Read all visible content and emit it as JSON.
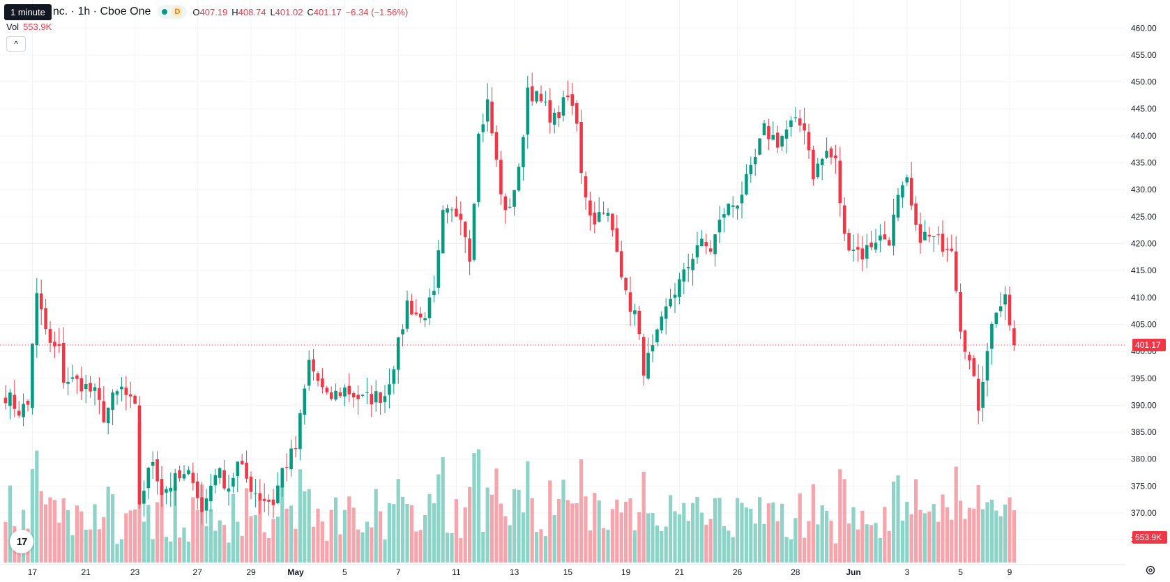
{
  "header": {
    "tooltip": "1 minute",
    "title": "nc. · 1h · Cboe One",
    "interval_badge": "D",
    "ohlc": {
      "o_label": "O",
      "o": "407.19",
      "h_label": "H",
      "h": "408.74",
      "l_label": "L",
      "l": "401.02",
      "c_label": "C",
      "c": "401.17"
    },
    "change": "−6.34 (−1.56%)"
  },
  "volume_legend": {
    "label": "Vol",
    "value": "553.9K"
  },
  "collapse_icon": "^",
  "logo_text": "17",
  "settings_icon": "gear-icon",
  "colors": {
    "up": "#089981",
    "down": "#f23645",
    "vol_up": "#8ed3c7",
    "vol_down": "#f5a5ab",
    "grid": "#f0f3fa",
    "axis_text": "#131722"
  },
  "chart_data": {
    "type": "candlestick",
    "interval": "1h",
    "last_price": 401.17,
    "last_price_label": "401.17",
    "last_volume_label": "553.9K",
    "y_ticks": [
      "460.00",
      "455.00",
      "450.00",
      "445.00",
      "440.00",
      "435.00",
      "430.00",
      "425.00",
      "420.00",
      "415.00",
      "410.00",
      "405.00",
      "400.00",
      "395.00",
      "390.00",
      "385.00",
      "380.00",
      "375.00",
      "370.00",
      "365.00"
    ],
    "ylim": [
      362.5,
      461.2
    ],
    "x_tick_labels": [
      "17",
      "21",
      "23",
      "27",
      "29",
      "May",
      "5",
      "7",
      "11",
      "13",
      "15",
      "19",
      "21",
      "26",
      "28",
      "Jun",
      "3",
      "5",
      "9"
    ],
    "x_tick_bar_index": [
      6,
      18,
      29,
      43,
      55,
      65,
      76,
      88,
      101,
      114,
      126,
      139,
      151,
      164,
      177,
      190,
      202,
      214,
      225
    ],
    "bar_count": 227,
    "waypoints": [
      [
        0,
        392
      ],
      [
        3,
        389
      ],
      [
        5,
        390
      ],
      [
        6,
        402
      ],
      [
        7,
        410
      ],
      [
        10,
        401
      ],
      [
        12,
        400
      ],
      [
        13,
        395
      ],
      [
        17,
        394
      ],
      [
        20,
        392
      ],
      [
        22,
        388
      ],
      [
        24,
        391
      ],
      [
        26,
        393
      ],
      [
        29,
        389
      ],
      [
        30,
        372
      ],
      [
        33,
        380
      ],
      [
        35,
        374
      ],
      [
        38,
        376
      ],
      [
        42,
        377
      ],
      [
        44,
        370
      ],
      [
        47,
        378
      ],
      [
        50,
        375
      ],
      [
        52,
        379
      ],
      [
        55,
        375
      ],
      [
        57,
        373
      ],
      [
        60,
        372
      ],
      [
        62,
        378
      ],
      [
        65,
        382
      ],
      [
        68,
        398
      ],
      [
        72,
        391
      ],
      [
        76,
        393
      ],
      [
        80,
        391
      ],
      [
        85,
        392
      ],
      [
        88,
        401
      ],
      [
        90,
        409
      ],
      [
        93,
        406
      ],
      [
        96,
        410
      ],
      [
        98,
        425
      ],
      [
        102,
        426
      ],
      [
        104,
        418
      ],
      [
        106,
        440
      ],
      [
        108,
        446
      ],
      [
        110,
        435
      ],
      [
        112,
        425
      ],
      [
        115,
        433
      ],
      [
        117,
        449
      ],
      [
        120,
        446
      ],
      [
        123,
        443
      ],
      [
        126,
        447
      ],
      [
        128,
        443
      ],
      [
        129,
        434
      ],
      [
        131,
        425
      ],
      [
        135,
        425
      ],
      [
        137,
        420
      ],
      [
        139,
        410
      ],
      [
        141,
        407
      ],
      [
        143,
        397
      ],
      [
        145,
        400
      ],
      [
        147,
        405
      ],
      [
        149,
        410
      ],
      [
        152,
        414
      ],
      [
        155,
        420
      ],
      [
        158,
        419
      ],
      [
        161,
        426
      ],
      [
        164,
        428
      ],
      [
        167,
        433
      ],
      [
        170,
        441
      ],
      [
        173,
        439
      ],
      [
        176,
        442
      ],
      [
        179,
        442
      ],
      [
        181,
        433
      ],
      [
        184,
        437
      ],
      [
        186,
        435
      ],
      [
        188,
        421
      ],
      [
        192,
        418
      ],
      [
        195,
        421
      ],
      [
        198,
        421
      ],
      [
        200,
        428
      ],
      [
        202,
        431
      ],
      [
        204,
        422
      ],
      [
        207,
        421
      ],
      [
        210,
        420
      ],
      [
        212,
        420
      ],
      [
        214,
        405
      ],
      [
        216,
        398
      ],
      [
        218,
        390
      ],
      [
        220,
        401
      ],
      [
        222,
        408
      ],
      [
        224,
        409
      ],
      [
        226,
        401.17
      ]
    ],
    "volume_max_label": "553.9K"
  }
}
